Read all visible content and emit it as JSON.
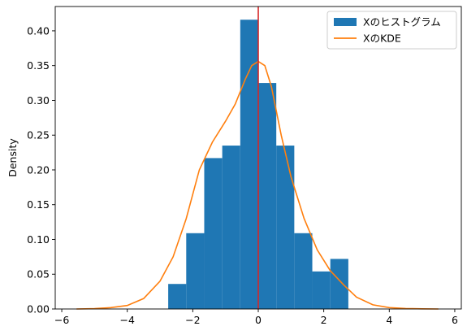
{
  "chart_data": {
    "type": "bar",
    "ylabel": "Density",
    "xlim": [
      -6.2,
      6.2
    ],
    "ylim": [
      0,
      0.435
    ],
    "x_ticks": [
      -6,
      -4,
      -2,
      0,
      2,
      4,
      6
    ],
    "y_ticks": [
      0.0,
      0.05,
      0.1,
      0.15,
      0.2,
      0.25,
      0.3,
      0.35,
      0.4
    ],
    "x_tick_labels": [
      "−6",
      "−4",
      "−2",
      "0",
      "2",
      "4",
      "6"
    ],
    "y_tick_labels": [
      "0.00",
      "0.05",
      "0.10",
      "0.15",
      "0.20",
      "0.25",
      "0.30",
      "0.35",
      "0.40"
    ],
    "histogram": {
      "name": "Xのヒストグラム",
      "color": "#1f77b4",
      "bin_edges": [
        -2.75,
        -2.2,
        -1.65,
        -1.1,
        -0.55,
        0.0,
        0.55,
        1.1,
        1.65,
        2.2,
        2.75
      ],
      "values": [
        0.036,
        0.109,
        0.217,
        0.235,
        0.416,
        0.325,
        0.235,
        0.109,
        0.054,
        0.072
      ]
    },
    "kde": {
      "name": "XのKDE",
      "color": "#ff7f0e",
      "x": [
        -5.55,
        -5.0,
        -4.5,
        -4.0,
        -3.5,
        -3.0,
        -2.6,
        -2.2,
        -1.8,
        -1.4,
        -1.0,
        -0.7,
        -0.4,
        -0.2,
        0.0,
        0.2,
        0.4,
        0.7,
        1.0,
        1.4,
        1.8,
        2.2,
        2.6,
        3.0,
        3.5,
        4.0,
        4.5,
        5.0,
        5.5
      ],
      "y": [
        0.0,
        0.0005,
        0.002,
        0.005,
        0.015,
        0.04,
        0.075,
        0.13,
        0.2,
        0.24,
        0.27,
        0.295,
        0.33,
        0.35,
        0.356,
        0.35,
        0.32,
        0.25,
        0.19,
        0.13,
        0.085,
        0.055,
        0.035,
        0.017,
        0.006,
        0.002,
        0.0007,
        0.0002,
        0.0
      ]
    },
    "vline": {
      "x": 0,
      "color": "#d62728"
    },
    "legend": {
      "placement": "top-right",
      "entries": [
        {
          "label": "Xのヒストグラム",
          "kind": "patch",
          "color": "#1f77b4"
        },
        {
          "label": "XのKDE",
          "kind": "line",
          "color": "#ff7f0e"
        }
      ]
    },
    "grid": false
  }
}
